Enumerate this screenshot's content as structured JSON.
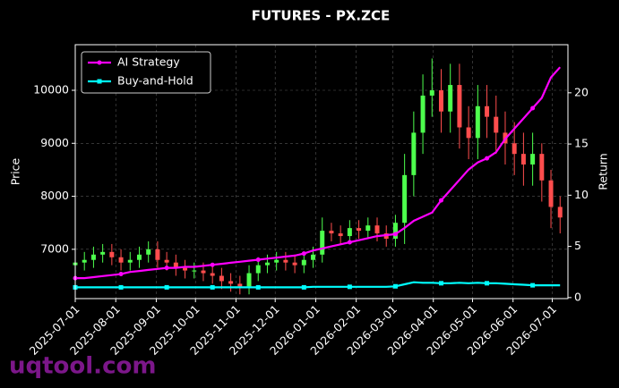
{
  "chart_data": {
    "type": "candlestick",
    "title": "FUTURES - PX.ZCE",
    "ylabel": "Price",
    "y2label": "Return",
    "watermark": "uqtool.com",
    "x": [
      "2025-07-01",
      "2025-07-08",
      "2025-07-15",
      "2025-07-22",
      "2025-07-29",
      "2025-08-05",
      "2025-08-12",
      "2025-08-19",
      "2025-08-26",
      "2025-09-02",
      "2025-09-09",
      "2025-09-16",
      "2025-09-23",
      "2025-09-30",
      "2025-10-07",
      "2025-10-14",
      "2025-10-21",
      "2025-10-28",
      "2025-11-04",
      "2025-11-11",
      "2025-11-18",
      "2025-11-25",
      "2025-12-02",
      "2025-12-09",
      "2025-12-16",
      "2025-12-23",
      "2025-12-30",
      "2026-01-06",
      "2026-01-13",
      "2026-01-20",
      "2026-01-27",
      "2026-02-03",
      "2026-02-10",
      "2026-02-17",
      "2026-02-24",
      "2026-03-03",
      "2026-03-10",
      "2026-03-17",
      "2026-03-24",
      "2026-03-31",
      "2026-04-07",
      "2026-04-14",
      "2026-04-21",
      "2026-04-28",
      "2026-05-05",
      "2026-05-12",
      "2026-05-19",
      "2026-05-26",
      "2026-06-02",
      "2026-06-09",
      "2026-06-16",
      "2026-06-23",
      "2026-06-30",
      "2026-07-07"
    ],
    "open": [
      6700,
      6750,
      6800,
      6900,
      6950,
      6850,
      6750,
      6800,
      6900,
      7000,
      6800,
      6750,
      6650,
      6600,
      6600,
      6550,
      6500,
      6400,
      6350,
      6300,
      6550,
      6700,
      6750,
      6800,
      6750,
      6700,
      6800,
      6900,
      7350,
      7300,
      7250,
      7400,
      7350,
      7450,
      7300,
      7200,
      7500,
      8400,
      9200,
      9900,
      10000,
      9600,
      10100,
      9300,
      9100,
      9700,
      9500,
      9200,
      9000,
      8800,
      8600,
      8800,
      8300,
      7800
    ],
    "high": [
      6900,
      6950,
      7050,
      7100,
      7100,
      7000,
      6950,
      7050,
      7150,
      7150,
      6950,
      6900,
      6800,
      6750,
      6750,
      6700,
      6650,
      6550,
      6500,
      6700,
      6850,
      6900,
      6950,
      6950,
      6900,
      6950,
      7050,
      7600,
      7500,
      7450,
      7550,
      7550,
      7600,
      7600,
      7450,
      7650,
      8800,
      9600,
      10300,
      10600,
      10400,
      10500,
      10500,
      9700,
      10100,
      10100,
      9900,
      9600,
      9400,
      9200,
      9200,
      9000,
      8500,
      8000
    ],
    "low": [
      6550,
      6600,
      6650,
      6750,
      6700,
      6600,
      6600,
      6650,
      6750,
      6650,
      6600,
      6500,
      6450,
      6450,
      6400,
      6350,
      6250,
      6200,
      6150,
      6150,
      6400,
      6550,
      6600,
      6600,
      6550,
      6550,
      6650,
      6750,
      7150,
      7100,
      7100,
      7200,
      7200,
      7150,
      7050,
      7050,
      7100,
      8000,
      8800,
      9500,
      9200,
      9200,
      8900,
      8700,
      8700,
      9100,
      8800,
      8600,
      8400,
      8200,
      8200,
      7900,
      7400,
      7300
    ],
    "close": [
      6750,
      6800,
      6900,
      6950,
      6850,
      6750,
      6800,
      6900,
      7000,
      6800,
      6750,
      6650,
      6600,
      6600,
      6550,
      6500,
      6400,
      6350,
      6300,
      6550,
      6700,
      6750,
      6800,
      6750,
      6700,
      6800,
      6900,
      7350,
      7300,
      7250,
      7400,
      7350,
      7450,
      7300,
      7200,
      7500,
      8400,
      9200,
      9900,
      10000,
      9600,
      10100,
      9300,
      9100,
      9700,
      9500,
      9200,
      9000,
      8800,
      8600,
      8800,
      8300,
      7800,
      7600
    ],
    "up_color": "#4dff4d",
    "down_color": "#ff4d4d",
    "series": [
      {
        "name": "AI Strategy",
        "color": "#ff00ff",
        "marker": "circle",
        "axis": "y2",
        "values": [
          1.9,
          1.9,
          2.0,
          2.1,
          2.2,
          2.3,
          2.5,
          2.6,
          2.7,
          2.8,
          2.9,
          2.9,
          3.0,
          3.0,
          3.1,
          3.2,
          3.3,
          3.4,
          3.5,
          3.6,
          3.7,
          3.8,
          3.9,
          4.0,
          4.1,
          4.3,
          4.6,
          4.8,
          5.0,
          5.2,
          5.4,
          5.6,
          5.8,
          6.0,
          6.1,
          6.2,
          6.8,
          7.5,
          7.9,
          8.3,
          9.5,
          10.5,
          11.5,
          12.5,
          13.2,
          13.6,
          14.2,
          15.5,
          16.5,
          17.5,
          18.5,
          19.5,
          21.5,
          22.5
        ]
      },
      {
        "name": "Buy-and-Hold",
        "color": "#00ffff",
        "marker": "square",
        "axis": "y2",
        "values": [
          1.0,
          1.0,
          1.0,
          1.0,
          1.0,
          1.0,
          1.0,
          1.0,
          1.0,
          1.0,
          1.0,
          1.0,
          1.0,
          1.0,
          1.0,
          1.0,
          1.0,
          1.0,
          1.0,
          1.0,
          1.0,
          1.0,
          1.0,
          1.0,
          1.0,
          1.0,
          1.05,
          1.05,
          1.05,
          1.05,
          1.05,
          1.05,
          1.05,
          1.05,
          1.05,
          1.1,
          1.3,
          1.5,
          1.45,
          1.45,
          1.4,
          1.4,
          1.45,
          1.4,
          1.45,
          1.4,
          1.4,
          1.35,
          1.3,
          1.25,
          1.2,
          1.2,
          1.2,
          1.2
        ]
      }
    ],
    "xlim": [
      "2025-07-01",
      "2026-07-13"
    ],
    "xticks": [
      "2025-07-01",
      "2025-08-01",
      "2025-09-01",
      "2025-10-01",
      "2025-11-01",
      "2025-12-01",
      "2026-01-01",
      "2026-02-01",
      "2026-03-01",
      "2026-04-01",
      "2026-05-01",
      "2026-06-01",
      "2026-07-01"
    ],
    "ylim": [
      6070,
      10860
    ],
    "yticks": [
      7000,
      8000,
      9000,
      10000
    ],
    "y2lim": [
      -0.1,
      24.7
    ],
    "y2ticks": [
      0,
      5,
      10,
      15,
      20
    ],
    "grid": true,
    "legend": "upper left"
  }
}
